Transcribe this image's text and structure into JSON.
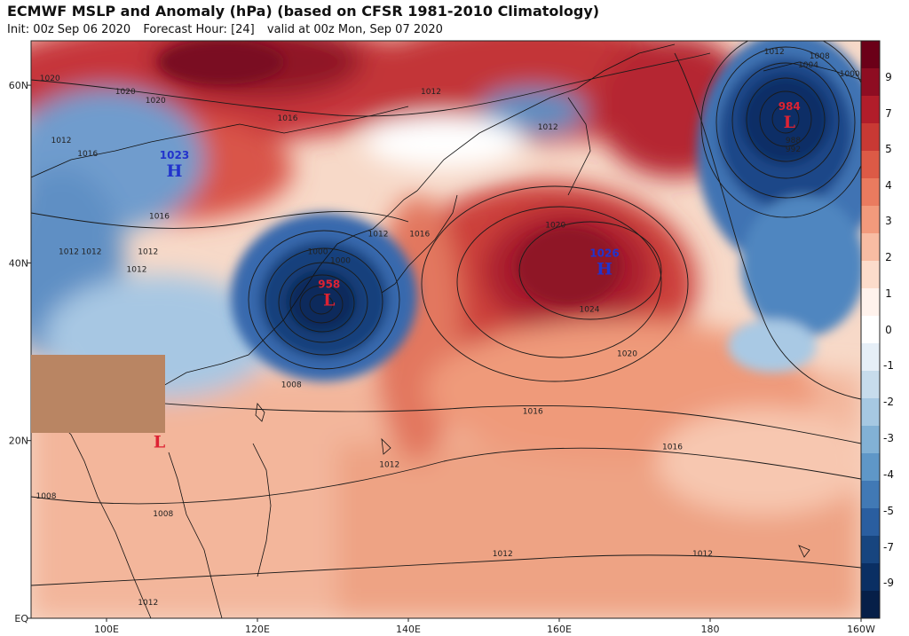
{
  "header": {
    "title": "ECMWF MSLP and Anomaly (hPa) (based on CFSR 1981-2010 Climatology)",
    "init": "Init: 00z Sep 06 2020",
    "forecast_hour": "Forecast Hour: [24]",
    "valid": "valid at 00z Mon, Sep 07 2020"
  },
  "map": {
    "lat_labels": [
      "60N",
      "40N",
      "20N",
      "EQ"
    ],
    "lon_labels": [
      "100E",
      "120E",
      "140E",
      "160E",
      "180",
      "160W"
    ],
    "pressure_centers": [
      {
        "letter": "H",
        "value": "1023",
        "lon": 109,
        "lat": 50.5,
        "color": "#2233cc"
      },
      {
        "letter": "L",
        "value": "958",
        "lon": 129.5,
        "lat": 36,
        "color": "#dd2233"
      },
      {
        "letter": "H",
        "value": "1026",
        "lon": 166,
        "lat": 39.5,
        "color": "#2233cc"
      },
      {
        "letter": "L",
        "value": "984",
        "lon": 190.5,
        "lat": 56,
        "color": "#dd2233"
      },
      {
        "letter": "L",
        "value": "",
        "lon": 107,
        "lat": 20,
        "color": "#dd2233"
      }
    ],
    "isobar_labels": [
      {
        "text": "1020",
        "lon": 92.5,
        "lat": 60.5
      },
      {
        "text": "1020",
        "lon": 102.5,
        "lat": 59
      },
      {
        "text": "1020",
        "lon": 106.5,
        "lat": 58
      },
      {
        "text": "1012",
        "lon": 94,
        "lat": 53.5
      },
      {
        "text": "1016",
        "lon": 97.5,
        "lat": 52
      },
      {
        "text": "1016",
        "lon": 107,
        "lat": 45
      },
      {
        "text": "1012",
        "lon": 95,
        "lat": 41
      },
      {
        "text": "1012",
        "lon": 98,
        "lat": 41
      },
      {
        "text": "1012",
        "lon": 105.5,
        "lat": 41
      },
      {
        "text": "1012",
        "lon": 104,
        "lat": 39
      },
      {
        "text": "1016",
        "lon": 124,
        "lat": 56
      },
      {
        "text": "1012",
        "lon": 136,
        "lat": 43
      },
      {
        "text": "1016",
        "lon": 141.5,
        "lat": 43
      },
      {
        "text": "1012",
        "lon": 143,
        "lat": 59
      },
      {
        "text": "1012",
        "lon": 158.5,
        "lat": 55
      },
      {
        "text": "1020",
        "lon": 159.5,
        "lat": 44
      },
      {
        "text": "1024",
        "lon": 164,
        "lat": 34.5
      },
      {
        "text": "1020",
        "lon": 169,
        "lat": 29.5
      },
      {
        "text": "1016",
        "lon": 156.5,
        "lat": 23
      },
      {
        "text": "1016",
        "lon": 175,
        "lat": 19
      },
      {
        "text": "1012",
        "lon": 137.5,
        "lat": 17
      },
      {
        "text": "1012",
        "lon": 152.5,
        "lat": 7
      },
      {
        "text": "1012",
        "lon": 179,
        "lat": 7
      },
      {
        "text": "1008",
        "lon": 124.5,
        "lat": 26
      },
      {
        "text": "1008",
        "lon": 92,
        "lat": 13.5
      },
      {
        "text": "1008",
        "lon": 107.5,
        "lat": 11.5
      },
      {
        "text": "1012",
        "lon": 105.5,
        "lat": 1.5
      },
      {
        "text": "1000",
        "lon": 128,
        "lat": 41
      },
      {
        "text": "1000",
        "lon": 131,
        "lat": 40
      },
      {
        "text": "1012",
        "lon": 188.5,
        "lat": 63.5
      },
      {
        "text": "1008",
        "lon": 194.5,
        "lat": 63
      },
      {
        "text": "1004",
        "lon": 193,
        "lat": 62
      },
      {
        "text": "1000",
        "lon": 198.5,
        "lat": 61
      },
      {
        "text": "988",
        "lon": 191,
        "lat": 53.5
      },
      {
        "text": "992",
        "lon": 191,
        "lat": 52.5
      }
    ]
  },
  "colorbar": {
    "labels": [
      "9",
      "7",
      "5",
      "4",
      "3",
      "2",
      "1",
      "0",
      "-1",
      "-2",
      "-3",
      "-4",
      "-5",
      "-7",
      "-9"
    ],
    "colors": [
      "#6b0018",
      "#8e0d22",
      "#b11d2a",
      "#c83934",
      "#dc5a46",
      "#ea7b5f",
      "#f29a7c",
      "#f8bca3",
      "#fcdccb",
      "#fff2ec",
      "#ffffff",
      "#e6eff7",
      "#c7dcec",
      "#a6c8e2",
      "#82b1d5",
      "#5f97c7",
      "#4179b5",
      "#2a5ea0",
      "#17457f",
      "#0a2f63",
      "#061f48"
    ]
  }
}
